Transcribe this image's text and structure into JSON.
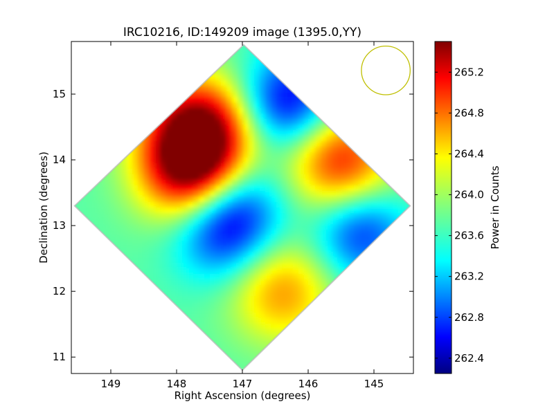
{
  "chart_data": {
    "type": "heatmap",
    "title": "IRC10216, ID:149209 image (1395.0,YY)",
    "xlabel": "Right Ascension (degrees)",
    "ylabel": "Declination (degrees)",
    "x_reversed": true,
    "xlim": [
      149.6,
      144.4
    ],
    "ylim": [
      10.75,
      15.8
    ],
    "xticks": [
      "149",
      "148",
      "147",
      "146",
      "145"
    ],
    "xtick_values": [
      149,
      148,
      147,
      146,
      145
    ],
    "yticks": [
      "11",
      "12",
      "13",
      "14",
      "15"
    ],
    "ytick_values": [
      11,
      12,
      13,
      14,
      15
    ],
    "colorbar": {
      "label": "Power in Counts",
      "range": [
        262.25,
        265.5
      ],
      "ticks": [
        "262.4",
        "262.8",
        "263.2",
        "263.6",
        "264.0",
        "264.4",
        "264.8",
        "265.2"
      ],
      "tick_values": [
        262.4,
        262.8,
        263.2,
        263.6,
        264.0,
        264.4,
        264.8,
        265.2
      ],
      "colormap": "jet"
    },
    "footprint_corners": [
      [
        146.98,
        15.75
      ],
      [
        144.45,
        13.3
      ],
      [
        147.0,
        10.8
      ],
      [
        149.55,
        13.3
      ]
    ],
    "features": [
      {
        "kind": "max",
        "ra": 147.8,
        "dec": 13.85,
        "value": 265.3
      },
      {
        "kind": "max",
        "ra": 147.65,
        "dec": 14.5,
        "value": 265.3
      },
      {
        "kind": "max",
        "ra": 145.5,
        "dec": 13.97,
        "value": 265.0
      },
      {
        "kind": "min",
        "ra": 146.3,
        "dec": 14.9,
        "value": 262.6
      },
      {
        "kind": "min",
        "ra": 145.2,
        "dec": 12.9,
        "value": 262.8
      },
      {
        "kind": "min",
        "ra": 147.35,
        "dec": 12.85,
        "value": 263.0
      },
      {
        "kind": "max",
        "ra": 146.4,
        "dec": 12.0,
        "value": 264.6
      },
      {
        "kind": "min",
        "ra": 147.05,
        "dec": 13.25,
        "value": 263.0
      }
    ],
    "beam": {
      "ra": 144.82,
      "dec": 15.36,
      "radius_deg": 0.37,
      "color": "#bfbf00"
    },
    "grid": false,
    "legend": "none"
  }
}
